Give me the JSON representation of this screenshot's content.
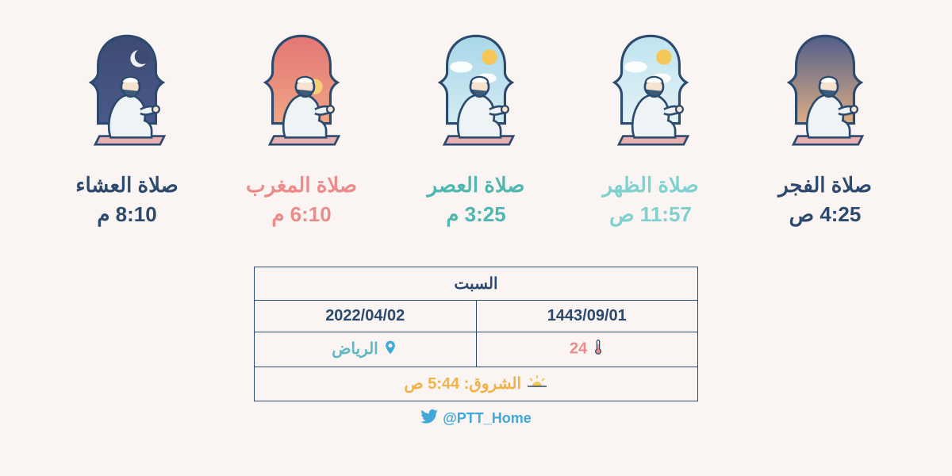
{
  "background_color": "#faf5f2",
  "stroke_color": "#2b4a6e",
  "prayers": [
    {
      "name": "صلاة العشاء",
      "time": "8:10 م",
      "color": "#2b4a6e",
      "bg_top": "#3d4a72",
      "bg_bottom": "#4a5a8a",
      "sun": false,
      "moon": true,
      "clouds": false
    },
    {
      "name": "صلاة المغرب",
      "time": "6:10 م",
      "color": "#ed8a8a",
      "bg_top": "#e37474",
      "bg_bottom": "#f0a785",
      "sun": true,
      "sun_low": true,
      "moon": false,
      "clouds": false
    },
    {
      "name": "صلاة العصر",
      "time": "3:25 م",
      "color": "#4eb8b0",
      "bg_top": "#a6d6e8",
      "bg_bottom": "#d4ecf3",
      "sun": true,
      "sun_color": "#f5c658",
      "moon": false,
      "clouds": true
    },
    {
      "name": "صلاة الظهر",
      "time": "11:57 ص",
      "color": "#7fd1cf",
      "bg_top": "#bde3ef",
      "bg_bottom": "#e5f2f6",
      "sun": true,
      "sun_color": "#f5c658",
      "moon": false,
      "clouds": true
    },
    {
      "name": "صلاة الفجر",
      "time": "4:25 ص",
      "color": "#2b4a6e",
      "bg_top": "#4a5a8a",
      "bg_bottom": "#e2b083",
      "sun": false,
      "moon": false,
      "clouds": false
    }
  ],
  "info": {
    "day": "السبت",
    "gregorian": "2022/04/02",
    "hijri": "1443/09/01",
    "city": "الرياض",
    "temperature": "24",
    "sunrise_label": "الشروق: 5:44 ص",
    "city_color": "#5fb7c5",
    "temp_color": "#ed8a8a",
    "sunrise_color": "#f0b24a"
  },
  "handle": {
    "text": "@PTT_Home",
    "color": "#3fa9d9"
  }
}
